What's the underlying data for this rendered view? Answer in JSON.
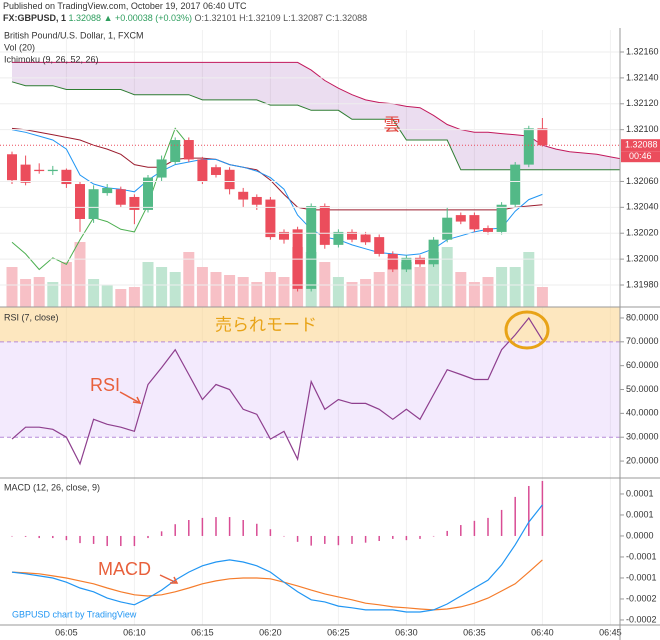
{
  "chart_data": [
    {
      "type": "candlestick",
      "published": "Published on TradingView.com, October 19, 2017 06:40 UTC",
      "symbol": "FX:GBPUSD, 1",
      "change": "1.32088 ▲ +0.00038 (+0.03%)",
      "ohlc_text": "O:1.32101 H:1.32109 L:1.32087 C:1.32088",
      "title": "British Pound/U.S. Dollar, 1, FXCM",
      "volume_title": "Vol (20)",
      "ichimoku_title": "Ichimoku (9, 26, 52, 26)",
      "annotation": "雲",
      "last_price_label": "1.32088",
      "countdown": "00:46",
      "categories": [
        null,
        null,
        null,
        null,
        "06:05",
        null,
        null,
        null,
        null,
        "06:10",
        null,
        null,
        null,
        null,
        "06:15",
        null,
        null,
        null,
        null,
        "06:20",
        null,
        null,
        null,
        null,
        "06:25",
        null,
        null,
        null,
        null,
        "06:30",
        null,
        null,
        null,
        null,
        "06:35",
        null,
        null,
        null,
        null,
        "06:40",
        null,
        null,
        null,
        null,
        "06:45",
        null
      ],
      "open": [
        1.32081,
        1.32073,
        1.32069,
        1.32068,
        1.32069,
        1.32058,
        1.32031,
        1.32051,
        1.32054,
        1.32048,
        1.32038,
        1.32063,
        1.32075,
        1.32092,
        1.32077,
        1.32071,
        1.32069,
        1.32052,
        1.32048,
        1.32046,
        1.32021,
        1.32023,
        1.31977,
        1.32041,
        1.32011,
        1.32021,
        1.32019,
        1.32017,
        1.32004,
        1.31992,
        1.32001,
        1.31996,
        1.32015,
        1.32034,
        1.32034,
        1.32024,
        1.32021,
        1.32042,
        1.32073,
        1.32101,
        null,
        null,
        null,
        null,
        null,
        null
      ],
      "high": [
        1.32083,
        1.3208,
        1.32074,
        1.32072,
        1.3207,
        1.3206,
        1.32057,
        1.32058,
        1.32056,
        1.3205,
        1.32065,
        1.3208,
        1.32094,
        1.32094,
        1.32079,
        1.32073,
        1.32071,
        1.32055,
        1.3205,
        1.32048,
        1.32023,
        1.32025,
        1.32043,
        1.32043,
        1.32023,
        1.32023,
        1.32021,
        1.32019,
        1.32006,
        1.32003,
        1.32003,
        1.32017,
        1.3204,
        1.32036,
        1.32036,
        1.32026,
        1.32044,
        1.32075,
        1.32103,
        1.32109,
        null,
        null,
        null,
        null,
        null,
        null
      ],
      "low": [
        1.32058,
        1.32057,
        1.32066,
        1.32065,
        1.32055,
        1.32021,
        1.32028,
        1.32049,
        1.3204,
        1.32027,
        1.32036,
        1.3206,
        1.32073,
        1.32075,
        1.32058,
        1.32063,
        1.3205,
        1.3204,
        1.32038,
        1.32015,
        1.32012,
        1.31975,
        1.31975,
        1.32008,
        1.32009,
        1.32013,
        1.32011,
        1.32002,
        1.3199,
        1.3199,
        1.31994,
        1.31994,
        1.32013,
        1.32027,
        1.32021,
        1.32019,
        1.32019,
        1.3204,
        1.32071,
        1.32087,
        null,
        null,
        null,
        null,
        null,
        null
      ],
      "close": [
        1.32061,
        1.32059,
        1.32068,
        1.32069,
        1.32058,
        1.32031,
        1.32054,
        1.32055,
        1.32042,
        1.32038,
        1.32063,
        1.32077,
        1.32092,
        1.32077,
        1.3206,
        1.32065,
        1.32054,
        1.32046,
        1.32042,
        1.32017,
        1.32015,
        1.31977,
        1.32041,
        1.32011,
        1.32021,
        1.32015,
        1.32013,
        1.32004,
        1.31992,
        1.32001,
        1.31996,
        1.32015,
        1.32032,
        1.32029,
        1.32023,
        1.32021,
        1.32042,
        1.32073,
        1.32101,
        1.32088,
        null,
        null,
        null,
        null,
        null,
        null
      ],
      "volume": [
        40,
        28,
        30,
        25,
        45,
        65,
        28,
        22,
        18,
        20,
        45,
        40,
        35,
        55,
        40,
        35,
        32,
        30,
        25,
        35,
        30,
        60,
        55,
        45,
        30,
        25,
        28,
        35,
        50,
        45,
        40,
        55,
        60,
        35,
        25,
        30,
        40,
        40,
        55,
        20,
        null,
        null,
        null,
        null,
        null,
        null
      ],
      "volume_lim": [
        0,
        100
      ],
      "conversion": [
        1.321,
        1.32098,
        1.32095,
        1.32092,
        1.32085,
        1.32065,
        1.32058,
        1.32055,
        1.32054,
        1.32052,
        1.32061,
        1.32068,
        1.32073,
        1.32075,
        1.32077,
        1.32077,
        1.32073,
        1.32071,
        1.32068,
        1.32063,
        1.32054,
        1.32034,
        1.32023,
        1.32017,
        1.32015,
        1.32011,
        1.32008,
        1.32005,
        1.32004,
        1.32003,
        1.32004,
        1.32008,
        1.32015,
        1.32018,
        1.32021,
        1.32023,
        1.32024,
        1.32037,
        1.32046,
        1.3205,
        null,
        null,
        null,
        null,
        null,
        null
      ],
      "base": [
        1.32101,
        1.321,
        1.32098,
        1.32096,
        1.32094,
        1.32092,
        1.32088,
        1.32085,
        1.32081,
        1.32073,
        1.32071,
        1.32071,
        1.32077,
        1.32078,
        1.32078,
        1.32077,
        1.32073,
        1.32071,
        1.32069,
        1.32061,
        1.3205,
        1.3204,
        1.32038,
        1.32038,
        1.32038,
        1.32038,
        1.32038,
        1.32038,
        1.32038,
        1.32038,
        1.32038,
        1.32038,
        1.32038,
        1.32038,
        1.32038,
        1.32038,
        1.32038,
        1.3204,
        1.32041,
        1.32042,
        null,
        null,
        null,
        null,
        null,
        null
      ],
      "lagging": [
        1.32013,
        1.32004,
        1.31992,
        1.32001,
        1.31996,
        1.32015,
        1.32032,
        1.32029,
        1.32023,
        1.32021,
        1.32042,
        1.32073,
        1.32101,
        1.32088,
        null,
        null,
        null,
        null,
        null,
        null,
        null,
        null,
        null,
        null,
        null,
        null,
        null,
        null,
        null,
        null,
        null,
        null,
        null,
        null,
        null,
        null,
        null,
        null,
        null,
        null,
        null,
        null,
        null,
        null,
        null,
        null
      ],
      "span_a": [
        1.32137,
        1.32134,
        1.32134,
        1.32134,
        1.32131,
        1.32131,
        1.32131,
        1.32131,
        1.32131,
        1.32127,
        1.32127,
        1.32127,
        1.32127,
        1.32127,
        1.32123,
        1.32123,
        1.32123,
        1.32123,
        1.32123,
        1.32119,
        1.32119,
        1.32119,
        1.32115,
        1.32115,
        1.32115,
        1.32108,
        1.32108,
        1.32108,
        1.32108,
        1.32092,
        1.32092,
        1.32092,
        1.32092,
        1.32069,
        1.32069,
        1.32069,
        1.32069,
        1.32069,
        1.32069,
        1.32069,
        1.32069,
        1.32069,
        1.32069,
        1.32069,
        1.32069,
        1.32069
      ],
      "span_b": [
        1.32152,
        1.32152,
        1.32152,
        1.32152,
        1.32152,
        1.32152,
        1.32152,
        1.32152,
        1.32152,
        1.32152,
        1.32152,
        1.32152,
        1.32152,
        1.32152,
        1.32152,
        1.32152,
        1.32152,
        1.32152,
        1.32152,
        1.32152,
        1.32152,
        1.32152,
        1.32146,
        1.32138,
        1.32132,
        1.32127,
        1.32123,
        1.32121,
        1.3212,
        1.32118,
        1.32117,
        1.32111,
        1.32104,
        1.321,
        1.32098,
        1.32098,
        1.32097,
        1.32096,
        1.32095,
        1.32088,
        1.32085,
        1.32083,
        1.32082,
        1.32081,
        1.32079,
        1.32077
      ],
      "colors": {
        "up": "#53b987",
        "down": "#eb4d5c",
        "volume_up": "#bfe5d1",
        "volume_down": "#f7c0c6",
        "conversion": "#2196f3",
        "base": "#9b1c2e",
        "lagging": "#4caf50",
        "span_a": "#2e7d32",
        "span_b": "#c2185b",
        "cloud": "#8e44ad"
      },
      "ylim": [
        1.31963,
        1.32177
      ],
      "yticks": [
        {
          "value": 1.3216,
          "label": "1.32160"
        },
        {
          "value": 1.3214,
          "label": "1.32140"
        },
        {
          "value": 1.3212,
          "label": "1.32120"
        },
        {
          "value": 1.321,
          "label": "1.32100"
        },
        {
          "value": 1.3206,
          "label": "1.32060"
        },
        {
          "value": 1.3204,
          "label": "1.32040"
        },
        {
          "value": 1.3202,
          "label": "1.32020"
        },
        {
          "value": 1.32,
          "label": "1.32000"
        },
        {
          "value": 1.3198,
          "label": "1.31980"
        }
      ],
      "grid": true
    },
    {
      "type": "line",
      "title": "RSI (7, close)",
      "annotations": [
        "売られモード",
        "RSI"
      ],
      "values": [
        29.2,
        34.2,
        34.2,
        33.3,
        30,
        18.8,
        37.5,
        35.4,
        34.2,
        32.5,
        52.1,
        59.2,
        66.7,
        56.3,
        45.8,
        52.1,
        50,
        41.7,
        39.6,
        29.2,
        32.5,
        20.8,
        53.3,
        41.7,
        45.8,
        44.2,
        44.2,
        41.7,
        37.5,
        41.7,
        37.5,
        47.9,
        58.3,
        56.3,
        54.2,
        54.2,
        66.7,
        72.9,
        80,
        70.8,
        null,
        null,
        null,
        null,
        null,
        null
      ],
      "color": "#8e3f8e",
      "band": [
        30,
        70
      ],
      "ylim": [
        12.9,
        84.6
      ],
      "yticks": [
        {
          "value": 80,
          "label": "80.0000"
        },
        {
          "value": 70,
          "label": "70.0000"
        },
        {
          "value": 60,
          "label": "60.0000"
        },
        {
          "value": 50,
          "label": "50.0000"
        },
        {
          "value": 40,
          "label": "40.0000"
        },
        {
          "value": 30,
          "label": "30.0000"
        },
        {
          "value": 20,
          "label": "20.0000"
        }
      ],
      "grid": false
    },
    {
      "type": "macd",
      "title": "MACD (12, 26, close, 9)",
      "annotation": "MACD",
      "credit": "GBPUSD chart by TradingView",
      "macd": [
        -8.6e-05,
        -9e-05,
        -9.5e-05,
        -0.0001,
        -0.00011,
        -0.000124,
        -0.000133,
        -0.000148,
        -0.000157,
        -0.000164,
        -0.000148,
        -0.000129,
        -0.000105,
        -8.6e-05,
        -7.1e-05,
        -6.2e-05,
        -5.7e-05,
        -6.2e-05,
        -7.1e-05,
        -8.6e-05,
        -0.00011,
        -0.000133,
        -0.000152,
        -0.000157,
        -0.000167,
        -0.000171,
        -0.000176,
        -0.000176,
        -0.000176,
        -0.000181,
        -0.000181,
        -0.000176,
        -0.000162,
        -0.000143,
        -0.000124,
        -0.000105,
        -6.9e-05,
        -2.1e-05,
        3.3e-05,
        7.4e-05,
        null,
        null,
        null,
        null,
        null,
        null
      ],
      "signal": [
        -8.6e-05,
        -8.8e-05,
        -9e-05,
        -9.5e-05,
        -0.0001,
        -0.000107,
        -0.000114,
        -0.000124,
        -0.000133,
        -0.00014,
        -0.000143,
        -0.00014,
        -0.000133,
        -0.000124,
        -0.000114,
        -0.000107,
        -0.000102,
        -0.0001,
        -0.0001,
        -0.000102,
        -0.00011,
        -0.000119,
        -0.000129,
        -0.000138,
        -0.000145,
        -0.000152,
        -0.00016,
        -0.000164,
        -0.000169,
        -0.000171,
        -0.000174,
        -0.000176,
        -0.000174,
        -0.000169,
        -0.00016,
        -0.000148,
        -0.000131,
        -0.000114,
        -8.6e-05,
        -5.7e-05,
        null,
        null,
        null,
        null,
        null,
        null
      ],
      "histogram": [
        0,
        -2e-06,
        -5e-06,
        -5e-06,
        -1e-05,
        -1.7e-05,
        -1.9e-05,
        -2.4e-05,
        -2.4e-05,
        -2.4e-05,
        -5e-06,
        1.1e-05,
        2.8e-05,
        3.8e-05,
        4.3e-05,
        4.5e-05,
        4.5e-05,
        3.8e-05,
        2.9e-05,
        1.6e-05,
        0,
        -1.4e-05,
        -2.3e-05,
        -1.9e-05,
        -2.2e-05,
        -1.9e-05,
        -1.6e-05,
        -1.2e-05,
        -7e-06,
        -1e-05,
        -7e-06,
        0,
        1.2e-05,
        2.6e-05,
        3.6e-05,
        4.3e-05,
        6.2e-05,
        9.3e-05,
        0.000119,
        0.000131,
        null,
        null,
        null,
        null,
        null,
        null
      ],
      "colors": {
        "macd": "#2196f3",
        "signal": "#f57c2b",
        "histogram": "#d94c94"
      },
      "ylim": [
        -0.000212,
        0.000138
      ],
      "yticks": [
        0.0001,
        {
          "value": 5e-05,
          "label": "0.0001"
        },
        {
          "value": 0,
          "label": "0.0000"
        },
        {
          "value": -5e-05,
          "label": "-0.0001"
        },
        {
          "value": -0.0001,
          "label": "-0.0001"
        },
        {
          "value": -0.00015,
          "label": "-0.0002"
        },
        {
          "value": -0.0002,
          "label": "-0.0002"
        }
      ],
      "grid": false
    }
  ]
}
